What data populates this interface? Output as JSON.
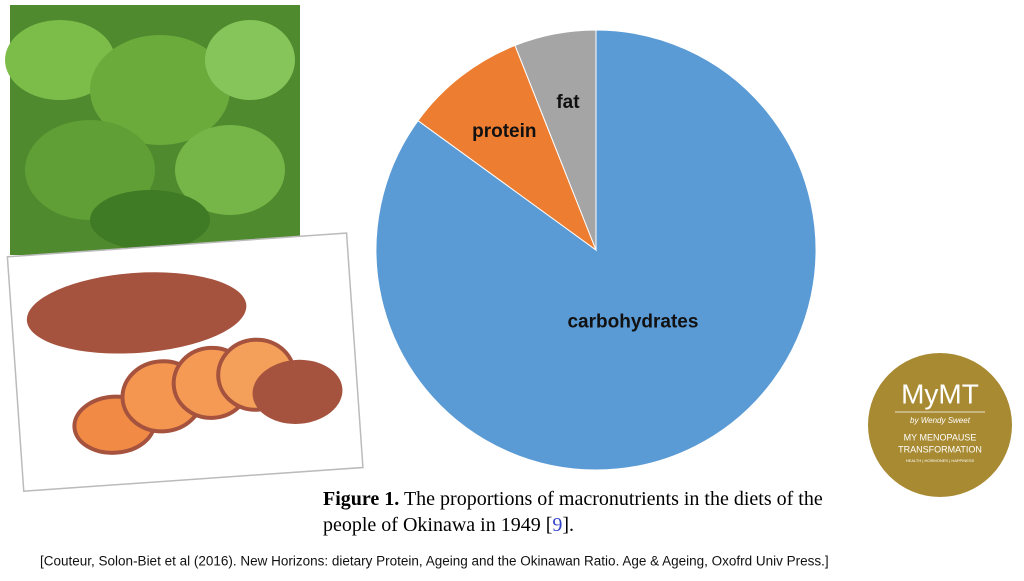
{
  "chart_data": {
    "type": "pie",
    "categories": [
      "carbohydrates",
      "protein",
      "fat"
    ],
    "values": [
      85,
      9,
      6
    ],
    "colors": [
      "#5b9bd5",
      "#ed7d31",
      "#a5a5a5"
    ]
  },
  "caption": {
    "label": "Figure 1.",
    "line1": "The proportions of macronutrients in the diets of the",
    "line2": "people of Okinawa in 1949 [",
    "ref": "9",
    "line2_end": "]."
  },
  "citation": "[Couteur, Solon-Biet et al (2016). New Horizons: dietary Protein, Ageing and the Okinawan Ratio. Age & Ageing, Oxofrd Univ Press.]",
  "logo": {
    "brand": "MyMT",
    "byline": "by Wendy Sweet",
    "line1": "MY MENOPAUSE",
    "line2": "TRANSFORMATION",
    "tagline": "HEALTH | HORMONES | HAPPINESS"
  }
}
